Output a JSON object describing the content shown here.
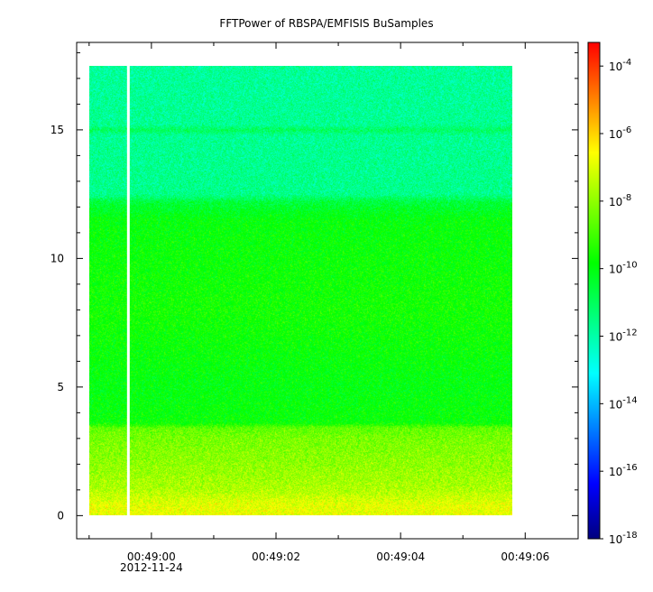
{
  "chart_data": {
    "type": "heatmap",
    "title": "FFTPower of RBSPA/EMFISIS  BuSamples",
    "xlabel": "",
    "ylabel": "",
    "x_ticks": [
      {
        "t": 0,
        "label": "00:49:00",
        "sublabel": "2012-11-24"
      },
      {
        "t": 2,
        "label": "00:49:02",
        "sublabel": ""
      },
      {
        "t": 4,
        "label": "00:49:04",
        "sublabel": ""
      },
      {
        "t": 6,
        "label": "00:49:06",
        "sublabel": ""
      }
    ],
    "x_minor_step": 1,
    "xlim": [
      -1.2,
      6.85
    ],
    "data_xrange": [
      -1.0,
      5.8
    ],
    "gap_x": -0.37,
    "y_ticks": [
      0,
      5,
      10,
      15
    ],
    "ylim": [
      -0.9,
      18.4
    ],
    "data_yrange": [
      0,
      17.5
    ],
    "y_minor_step": 1,
    "colorbar": {
      "scale": "log",
      "range": [
        -18,
        -3.3
      ],
      "ticks": [
        {
          "value": -4,
          "label": "10",
          "exp": "-4"
        },
        {
          "value": -6,
          "label": "10",
          "exp": "-6"
        },
        {
          "value": -8,
          "label": "10",
          "exp": "-8"
        },
        {
          "value": -10,
          "label": "10",
          "exp": "-10"
        },
        {
          "value": -12,
          "label": "10",
          "exp": "-12"
        },
        {
          "value": -14,
          "label": "10",
          "exp": "-14"
        },
        {
          "value": -16,
          "label": "10",
          "exp": "-16"
        },
        {
          "value": -18,
          "label": "10",
          "exp": "-18"
        }
      ],
      "colors": [
        "#00007f",
        "#0000ff",
        "#007fff",
        "#00ffff",
        "#00ff7f",
        "#00ff00",
        "#7fff00",
        "#ffff00",
        "#ff7f00",
        "#ff0000"
      ]
    },
    "power_profile": [
      {
        "f": 0.0,
        "log10_power": -6.8
      },
      {
        "f": 0.4,
        "log10_power": -6.9
      },
      {
        "f": 1.0,
        "log10_power": -7.6
      },
      {
        "f": 2.0,
        "log10_power": -8.0
      },
      {
        "f": 3.0,
        "log10_power": -8.3
      },
      {
        "f": 3.4,
        "log10_power": -8.6
      },
      {
        "f": 3.6,
        "log10_power": -9.8
      },
      {
        "f": 5.0,
        "log10_power": -10.0
      },
      {
        "f": 8.0,
        "log10_power": -9.6
      },
      {
        "f": 11.5,
        "log10_power": -9.9
      },
      {
        "f": 12.2,
        "log10_power": -10.6
      },
      {
        "f": 12.5,
        "log10_power": -11.6
      },
      {
        "f": 14.8,
        "log10_power": -11.7
      },
      {
        "f": 15.0,
        "log10_power": -11.0
      },
      {
        "f": 15.2,
        "log10_power": -11.7
      },
      {
        "f": 17.5,
        "log10_power": -11.8
      }
    ]
  }
}
